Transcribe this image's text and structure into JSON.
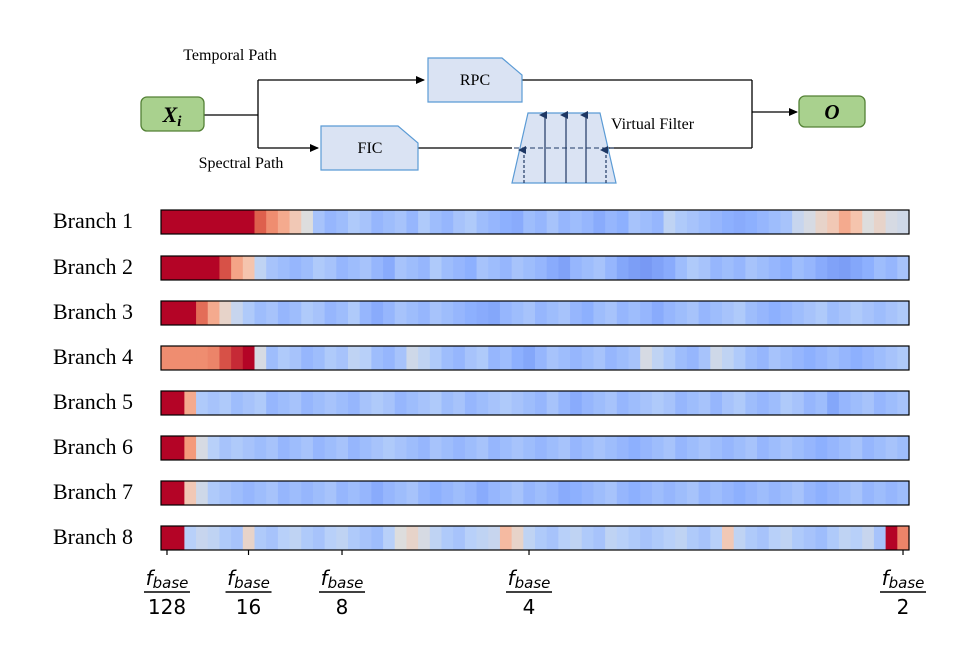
{
  "diagram": {
    "input": {
      "label_main": "X",
      "label_sub": "i",
      "fill": "#a9d18e",
      "stroke": "#538135"
    },
    "output": {
      "label": "O",
      "fill": "#a9d18e",
      "stroke": "#538135"
    },
    "temporal_path_label": "Temporal Path",
    "spectral_path_label": "Spectral Path",
    "rpc": {
      "label": "RPC",
      "fill": "#dae3f3",
      "stroke": "#5b9bd5"
    },
    "fic": {
      "label": "FIC",
      "fill": "#dae3f3",
      "stroke": "#5b9bd5"
    },
    "virtual_filter": {
      "label": "Virtual Filter",
      "fill": "#dae3f3",
      "stroke": "#5b9bd5",
      "arrow_color": "#1f3864"
    }
  },
  "heatmap": {
    "colormap": "coolwarm",
    "cells_per_branch": 64,
    "branches": [
      {
        "label": "Branch 1",
        "values": [
          1,
          1,
          1,
          1,
          1,
          1,
          1,
          1,
          0.88,
          0.78,
          0.7,
          0.6,
          0.5,
          0.15,
          0.05,
          0.1,
          0.2,
          0.15,
          0.05,
          0.1,
          0.15,
          0.05,
          0.2,
          0.1,
          0.05,
          0.15,
          0.2,
          0.1,
          0.05,
          0.0,
          -0.05,
          0.1,
          0.05,
          0.15,
          0.05,
          0.1,
          0.05,
          -0.05,
          0.05,
          0.0,
          0.15,
          0.1,
          0.05,
          0.3,
          0.2,
          0.15,
          0.1,
          0.05,
          0.0,
          -0.05,
          0.0,
          0.05,
          0.1,
          0.15,
          0.35,
          0.45,
          0.55,
          0.6,
          0.7,
          0.62,
          0.5,
          0.55,
          0.45,
          0.4
        ]
      },
      {
        "label": "Branch 2",
        "values": [
          1,
          1,
          1,
          1,
          1,
          0.9,
          0.72,
          0.62,
          0.3,
          0.15,
          0.1,
          0.05,
          0.1,
          0.2,
          0.15,
          0.05,
          0.1,
          0.15,
          0.05,
          -0.05,
          0.15,
          0.1,
          0.05,
          0.2,
          0.1,
          0.05,
          0.0,
          0.15,
          0.1,
          0.05,
          0.15,
          0.1,
          0.05,
          -0.05,
          -0.15,
          0.05,
          0.1,
          0.15,
          0.05,
          -0.1,
          -0.2,
          -0.25,
          -0.15,
          -0.05,
          0.1,
          0.2,
          0.15,
          0.05,
          0.1,
          0.05,
          0.15,
          0.1,
          0.05,
          0.0,
          0.1,
          0.05,
          -0.05,
          -0.15,
          -0.2,
          -0.1,
          0.0,
          0.1,
          0.05,
          0.15
        ]
      },
      {
        "label": "Branch 3",
        "values": [
          1,
          1,
          1,
          0.85,
          0.7,
          0.55,
          0.35,
          0.2,
          0.1,
          0.15,
          0.05,
          0.1,
          0.2,
          0.15,
          0.05,
          0.1,
          0.2,
          0.05,
          -0.05,
          0.05,
          0.15,
          0.1,
          0.05,
          0.15,
          0.1,
          0.05,
          0.0,
          -0.05,
          -0.1,
          0.05,
          0.1,
          0.15,
          0.05,
          0.1,
          0.15,
          0.05,
          0.0,
          0.1,
          0.15,
          0.05,
          0.1,
          0.05,
          -0.05,
          0.05,
          0.1,
          0.15,
          0.05,
          0.1,
          0.15,
          0.2,
          0.1,
          0.05,
          0.0,
          0.05,
          0.1,
          0.15,
          0.2,
          0.1,
          0.15,
          0.2,
          0.15,
          0.1,
          0.15,
          0.2
        ]
      },
      {
        "label": "Branch 4",
        "values": [
          0.78,
          0.78,
          0.78,
          0.78,
          0.8,
          0.9,
          0.95,
          1,
          0.45,
          0.1,
          0.2,
          0.15,
          0.05,
          0.1,
          0.2,
          0.15,
          0.3,
          0.25,
          0.1,
          0.05,
          0.15,
          0.4,
          0.3,
          0.2,
          0.1,
          0.05,
          0.15,
          0.2,
          0.05,
          0.1,
          0.0,
          -0.1,
          0.05,
          0.15,
          0.1,
          0.05,
          0.1,
          0.15,
          0.05,
          0.1,
          0.15,
          0.45,
          0.3,
          0.2,
          0.1,
          0.05,
          0.15,
          0.4,
          0.3,
          0.2,
          0.1,
          0.05,
          0.15,
          0.1,
          0.05,
          0.0,
          0.05,
          0.1,
          0.05,
          0.0,
          0.05,
          0.1,
          0.15,
          0.2
        ]
      },
      {
        "label": "Branch 5",
        "values": [
          1,
          1,
          0.7,
          0.2,
          0.15,
          0.2,
          0.1,
          0.15,
          0.2,
          0.05,
          0.1,
          0.15,
          0.05,
          0.1,
          0.15,
          0.1,
          0.05,
          0.15,
          0.2,
          0.15,
          0.05,
          0.1,
          0.15,
          0.2,
          0.1,
          0.15,
          0.05,
          0.1,
          0.15,
          0.2,
          0.15,
          0.1,
          0.05,
          0.15,
          0.05,
          -0.05,
          0.05,
          0.1,
          0.15,
          0.05,
          0.1,
          0.15,
          0.2,
          0.15,
          0.05,
          0.1,
          0.15,
          0.05,
          0.15,
          0.2,
          0.1,
          0.05,
          0.1,
          0.2,
          0.15,
          0.05,
          0.1,
          -0.1,
          0.05,
          0.1,
          0.15,
          0.05,
          0.1,
          0.15
        ]
      },
      {
        "label": "Branch 6",
        "values": [
          1,
          1,
          0.75,
          0.45,
          0.25,
          0.15,
          0.2,
          0.15,
          0.1,
          0.15,
          0.05,
          0.1,
          0.15,
          0.05,
          0.1,
          0.15,
          0.05,
          0.1,
          0.15,
          0.2,
          0.15,
          0.1,
          0.05,
          0.15,
          0.1,
          0.05,
          0.1,
          0.15,
          0.05,
          0.1,
          0.15,
          0.1,
          0.05,
          0.1,
          0.15,
          0.05,
          0.1,
          0.15,
          0.1,
          0.05,
          0.0,
          0.05,
          0.1,
          0.15,
          0.05,
          0.1,
          0.15,
          0.1,
          0.05,
          0.1,
          0.15,
          0.05,
          0.1,
          0.15,
          0.1,
          0.05,
          0.0,
          0.05,
          0.1,
          0.15,
          0.05,
          0.1,
          0.15,
          0.1
        ]
      },
      {
        "label": "Branch 7",
        "values": [
          1,
          1,
          0.6,
          0.4,
          0.2,
          0.15,
          0.1,
          0.05,
          0.1,
          0.15,
          0.05,
          0.1,
          0.05,
          0.1,
          0.15,
          0.05,
          0.1,
          0.05,
          -0.05,
          0.05,
          0.1,
          0.15,
          0.05,
          0.0,
          0.05,
          0.1,
          0.05,
          -0.05,
          0.05,
          0.1,
          0.15,
          0.05,
          0.1,
          0.05,
          -0.05,
          0.0,
          0.05,
          0.1,
          0.15,
          0.05,
          0.0,
          0.05,
          0.1,
          0.05,
          0.1,
          0.15,
          0.05,
          0.1,
          0.05,
          0.0,
          0.05,
          0.1,
          0.05,
          0.1,
          0.15,
          0.05,
          0.0,
          0.05,
          0.1,
          0.15,
          0.05,
          0.1,
          0.05,
          0.1
        ]
      },
      {
        "label": "Branch 8",
        "values": [
          1,
          1,
          0.25,
          0.35,
          0.3,
          0.2,
          0.15,
          0.55,
          0.2,
          0.15,
          0.25,
          0.3,
          0.2,
          0.15,
          0.25,
          0.3,
          0.2,
          0.15,
          0.1,
          0.25,
          0.5,
          0.55,
          0.45,
          0.3,
          0.2,
          0.15,
          0.25,
          0.3,
          0.35,
          0.65,
          0.55,
          0.3,
          0.2,
          0.15,
          0.25,
          0.3,
          0.2,
          0.15,
          0.3,
          0.25,
          0.2,
          0.15,
          0.2,
          0.25,
          0.3,
          0.2,
          0.15,
          0.25,
          0.6,
          0.3,
          0.2,
          0.15,
          0.25,
          0.3,
          0.2,
          0.15,
          0.1,
          0.2,
          0.3,
          0.25,
          0.35,
          0.15,
          1,
          0.8
        ]
      }
    ]
  },
  "axis": {
    "ticks": [
      {
        "num": "f",
        "num_sub": "base",
        "den": "128",
        "pos": 0.008
      },
      {
        "num": "f",
        "num_sub": "base",
        "den": "16",
        "pos": 0.117
      },
      {
        "num": "f",
        "num_sub": "base",
        "den": "8",
        "pos": 0.242
      },
      {
        "num": "f",
        "num_sub": "base",
        "den": "4",
        "pos": 0.492
      },
      {
        "num": "f",
        "num_sub": "base",
        "den": "2",
        "pos": 0.992
      }
    ]
  }
}
